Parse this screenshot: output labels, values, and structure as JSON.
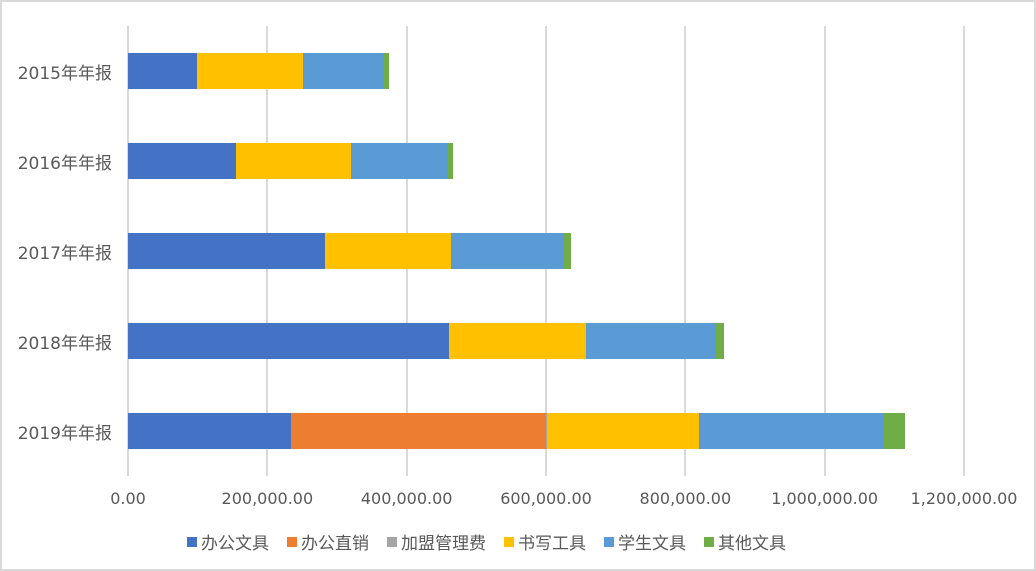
{
  "chart_data": {
    "type": "bar",
    "orientation": "horizontal",
    "stacked": true,
    "title": "",
    "xlabel": "",
    "ylabel": "",
    "categories": [
      "2015年年报",
      "2016年年报",
      "2017年年报",
      "2018年年报",
      "2019年年报"
    ],
    "series": [
      {
        "name": "办公文具",
        "color": "#4472C4",
        "values": [
          99000,
          155000,
          283000,
          461000,
          234000
        ]
      },
      {
        "name": "办公直销",
        "color": "#ED7D31",
        "values": [
          0,
          0,
          0,
          0,
          366000
        ]
      },
      {
        "name": "加盟管理费",
        "color": "#A5A5A5",
        "values": [
          0,
          0,
          0,
          0,
          1000
        ]
      },
      {
        "name": "书写工具",
        "color": "#FFC000",
        "values": [
          152000,
          165000,
          180000,
          196000,
          219000
        ]
      },
      {
        "name": "学生文具",
        "color": "#5B9BD5",
        "values": [
          115000,
          138000,
          163000,
          186000,
          265000
        ]
      },
      {
        "name": "其他文具",
        "color": "#70AD47",
        "values": [
          9000,
          9000,
          10000,
          12000,
          30000
        ]
      }
    ],
    "xlim": [
      0,
      1200000
    ],
    "x_ticks": [
      "0.00",
      "200,000.00",
      "400,000.00",
      "600,000.00",
      "800,000.00",
      "1,000,000.00",
      "1,200,000.00"
    ],
    "grid": true,
    "legend_position": "bottom"
  }
}
